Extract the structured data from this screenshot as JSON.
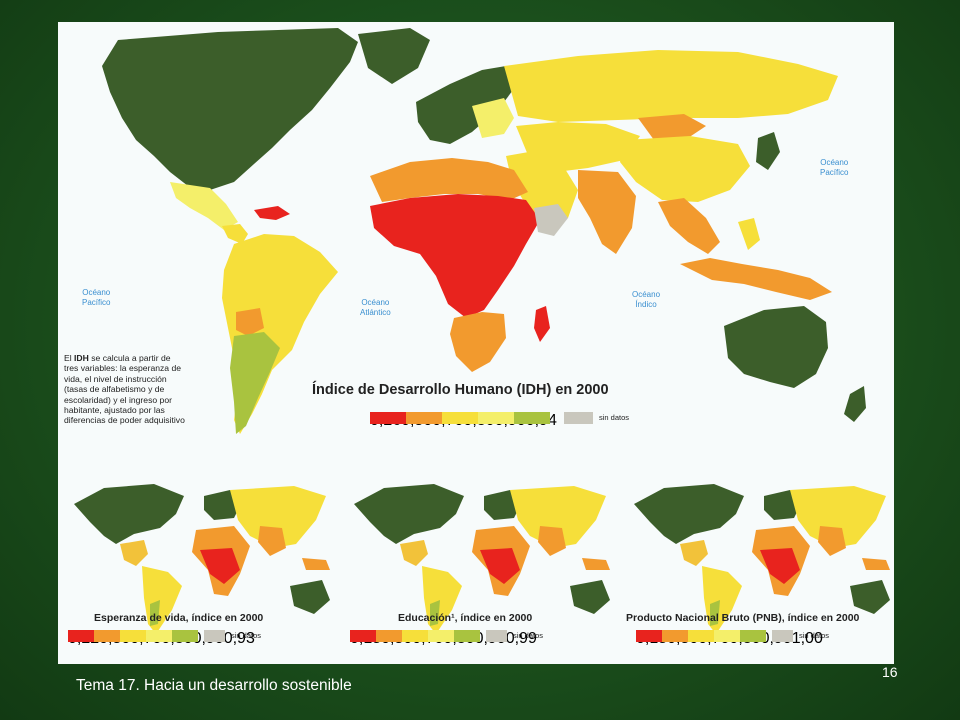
{
  "main_map": {
    "title": "Índice de Desarrollo Humano (IDH) en 2000",
    "note_lines": [
      "El IDH se calcula a partir de",
      "tres variables: la esperanza de",
      "vida, el nivel de instrucción",
      "(tasas de alfabetismo y de",
      "escolaridad) y el ingreso por",
      "habitante, ajustado por las",
      "diferencias de poder adquisitivo"
    ],
    "legend_values": [
      "0,26",
      "0,50",
      "0,70",
      "0,80",
      "0,90",
      "0,94"
    ],
    "no_data_label": "sin datos"
  },
  "oceans": {
    "pacific_left": [
      "Océano",
      "Pacífico"
    ],
    "atlantic": [
      "Océano",
      "Atlántico"
    ],
    "indian": [
      "Océano",
      "Índico"
    ],
    "pacific_right": [
      "Océano",
      "Pacífico"
    ]
  },
  "small_maps": [
    {
      "title": "Esperanza de vida, índice en 2000",
      "legend_values": [
        "0,22",
        "0,50",
        "0,70",
        "0,80",
        "0,90",
        "0,93"
      ],
      "no_data_label": "sin datos"
    },
    {
      "title": "Educación¹, índice en 2000",
      "legend_values": [
        "0,15",
        "0,50",
        "0,70",
        "0,80",
        "0,90",
        "0,99"
      ],
      "no_data_label": "sin datos"
    },
    {
      "title": "Producto Nacional Bruto (PNB), índice en 2000",
      "legend_values": [
        "0,15",
        "0,50",
        "0,70",
        "0,80",
        "0,90",
        "1,00"
      ],
      "no_data_label": "sin datos"
    }
  ],
  "colors": {
    "c1": "#e8231e",
    "c2": "#f29a2e",
    "c3": "#f6df3a",
    "c4": "#f4ef6a",
    "c5": "#a9c33f",
    "c6": "#3c5e2a",
    "nodata": "#c9c7bd",
    "water": "#f7fbfb",
    "ocean_label": "#3a8fd0"
  },
  "footer": {
    "text": "Tema 17. Hacia un desarrollo sostenible",
    "page_number": "16"
  }
}
